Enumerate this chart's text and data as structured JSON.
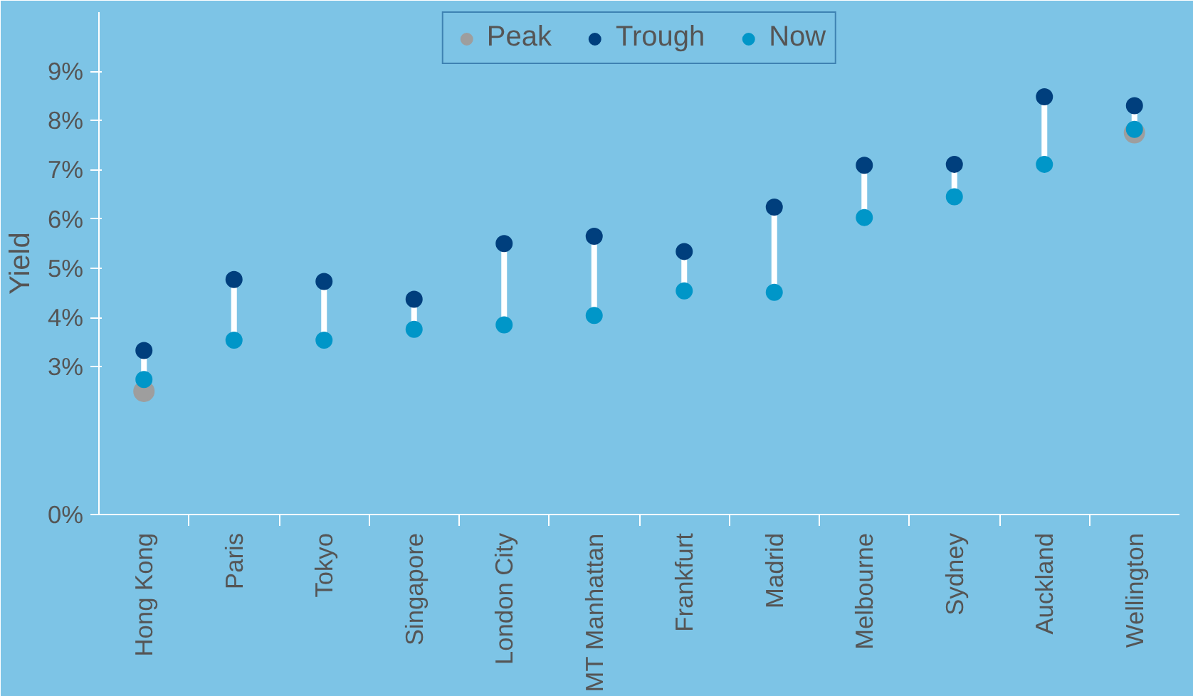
{
  "chart_data": {
    "type": "scatter",
    "ylabel": "Yield",
    "categories": [
      "Hong Kong",
      "Paris",
      "Tokyo",
      "Singapore",
      "London City",
      "MT Manhattan",
      "Frankfurt",
      "Madrid",
      "Melbourne",
      "Sydney",
      "Auckland",
      "Wellington"
    ],
    "series": [
      {
        "name": "Peak",
        "color": "#9e9e9e",
        "values": [
          2.5,
          null,
          null,
          null,
          null,
          null,
          null,
          null,
          null,
          null,
          null,
          7.75
        ]
      },
      {
        "name": "Trough",
        "color": "#003f7d",
        "values": [
          3.33,
          4.77,
          4.73,
          4.37,
          5.5,
          5.65,
          5.34,
          6.24,
          7.09,
          7.11,
          8.48,
          8.3
        ]
      },
      {
        "name": "Now",
        "color": "#0096c8",
        "values": [
          2.74,
          3.54,
          3.54,
          3.76,
          3.85,
          4.04,
          4.54,
          4.51,
          6.03,
          6.45,
          7.11,
          7.82
        ]
      }
    ],
    "ylim": [
      0,
      10.2
    ],
    "yticks": [
      {
        "value": 0,
        "label": "0%"
      },
      {
        "value": 3,
        "label": "3%"
      },
      {
        "value": 4,
        "label": "4%"
      },
      {
        "value": 5,
        "label": "5%"
      },
      {
        "value": 6,
        "label": "6%"
      },
      {
        "value": 7,
        "label": "7%"
      },
      {
        "value": 8,
        "label": "8%"
      },
      {
        "value": 9,
        "label": "9%"
      }
    ],
    "marker": "circle",
    "grid": false,
    "legend": "top"
  }
}
